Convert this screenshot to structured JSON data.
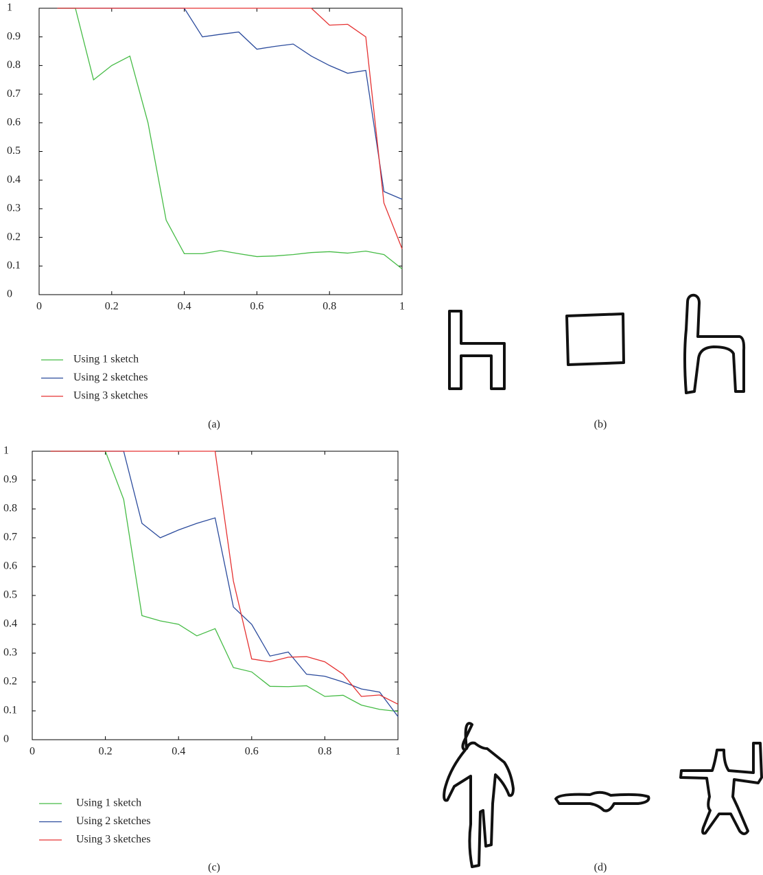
{
  "chart_data": [
    {
      "type": "line",
      "caption": "(a)",
      "x": [
        0.05,
        0.1,
        0.15,
        0.2,
        0.25,
        0.3,
        0.35,
        0.4,
        0.45,
        0.5,
        0.55,
        0.6,
        0.65,
        0.7,
        0.75,
        0.8,
        0.85,
        0.9,
        0.95,
        1
      ],
      "series": [
        {
          "name": "Using 1 sketch",
          "color": "#44bb44",
          "values": [
            1,
            1,
            0.75,
            0.8,
            0.833,
            0.6,
            0.26,
            0.143,
            0.143,
            0.154,
            0.143,
            0.133,
            0.135,
            0.14,
            0.147,
            0.15,
            0.145,
            0.152,
            0.14,
            0.09
          ]
        },
        {
          "name": "Using 2 sketches",
          "color": "#2a4a9c",
          "values": [
            1,
            1,
            1,
            1,
            1,
            1,
            1,
            1,
            0.9,
            0.909,
            0.917,
            0.857,
            0.867,
            0.875,
            0.833,
            0.8,
            0.773,
            0.783,
            0.36,
            0.333
          ]
        },
        {
          "name": "Using 3 sketches",
          "color": "#e53030",
          "values": [
            1,
            1,
            1,
            1,
            1,
            1,
            1,
            1,
            1,
            1,
            1,
            1,
            1,
            1,
            1,
            0.941,
            0.944,
            0.9,
            0.32,
            0.16
          ]
        }
      ],
      "xlim": [
        0,
        1
      ],
      "ylim": [
        0,
        1
      ],
      "xticks": [
        0,
        0.2,
        0.4,
        0.6,
        0.8,
        1
      ],
      "yticks": [
        0,
        0.1,
        0.2,
        0.3,
        0.4,
        0.5,
        0.6,
        0.7,
        0.8,
        0.9,
        1
      ]
    },
    {
      "type": "line",
      "caption": "(c)",
      "x": [
        0.05,
        0.1,
        0.15,
        0.2,
        0.25,
        0.3,
        0.35,
        0.4,
        0.45,
        0.5,
        0.55,
        0.6,
        0.65,
        0.7,
        0.75,
        0.8,
        0.85,
        0.9,
        0.95,
        1
      ],
      "series": [
        {
          "name": "Using 1 sketch",
          "color": "#44bb44",
          "values": [
            1,
            1,
            1,
            1,
            0.833,
            0.43,
            0.412,
            0.4,
            0.36,
            0.385,
            0.25,
            0.235,
            0.185,
            0.184,
            0.187,
            0.15,
            0.154,
            0.12,
            0.105,
            0.098
          ]
        },
        {
          "name": "Using 2 sketches",
          "color": "#2a4a9c",
          "values": [
            1,
            1,
            1,
            1,
            1,
            0.75,
            0.7,
            0.727,
            0.75,
            0.769,
            0.46,
            0.4,
            0.29,
            0.304,
            0.227,
            0.22,
            0.2,
            0.176,
            0.165,
            0.08
          ]
        },
        {
          "name": "Using 3 sketches",
          "color": "#e53030",
          "values": [
            1,
            1,
            1,
            1,
            1,
            1,
            1,
            1,
            1,
            1,
            0.55,
            0.28,
            0.27,
            0.286,
            0.288,
            0.27,
            0.227,
            0.15,
            0.155,
            0.123
          ]
        }
      ],
      "xlim": [
        0,
        1
      ],
      "ylim": [
        0,
        1
      ],
      "xticks": [
        0,
        0.2,
        0.4,
        0.6,
        0.8,
        1
      ],
      "yticks": [
        0,
        0.1,
        0.2,
        0.3,
        0.4,
        0.5,
        0.6,
        0.7,
        0.8,
        0.9,
        1
      ]
    }
  ],
  "figures": [
    {
      "caption": "(b)"
    },
    {
      "caption": "(d)"
    }
  ]
}
